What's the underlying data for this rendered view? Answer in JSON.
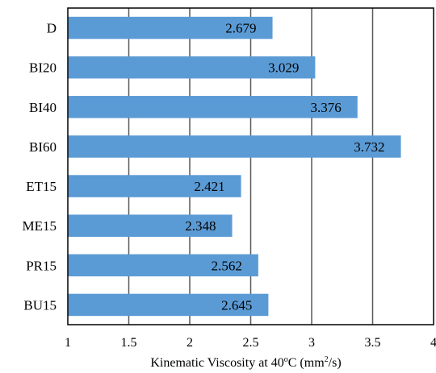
{
  "chart_data": {
    "type": "bar",
    "orientation": "horizontal",
    "categories": [
      "D",
      "BI20",
      "BI40",
      "BI60",
      "ET15",
      "ME15",
      "PR15",
      "BU15"
    ],
    "values": [
      2.679,
      3.029,
      3.376,
      3.732,
      2.421,
      2.348,
      2.562,
      2.645
    ],
    "value_labels": [
      "2.679",
      "3.029",
      "3.376",
      "3.732",
      "2.421",
      "2.348",
      "2.562",
      "2.645"
    ],
    "x_ticks": [
      "1",
      "1.5",
      "2",
      "2.5",
      "3",
      "3.5",
      "4"
    ],
    "xlim": [
      1,
      4
    ],
    "xlabel_main": "Kinematic Viscosity at 40",
    "xlabel_sup1": "o",
    "xlabel_unit": "C (mm",
    "xlabel_sup2": "2",
    "xlabel_end": "/s)",
    "grid": "vertical",
    "legend": "none",
    "bar_color": "#5b9bd5",
    "frame_color": "#000000",
    "grid_color": "#595959"
  }
}
